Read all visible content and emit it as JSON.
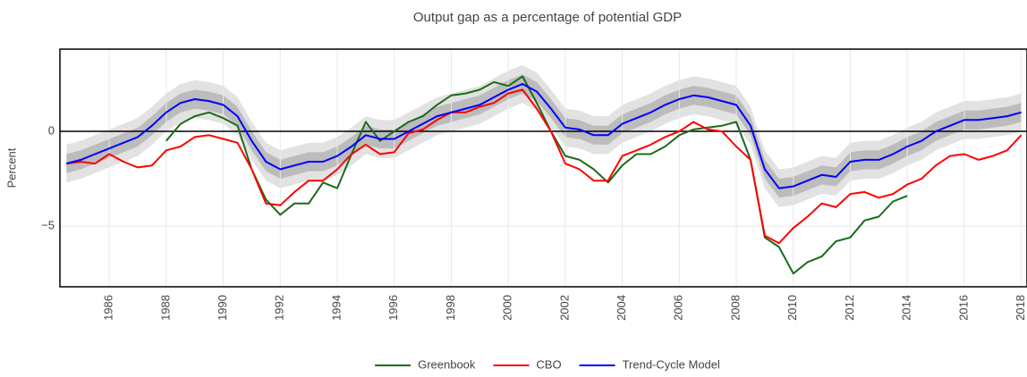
{
  "chart_data": {
    "type": "line",
    "title": "Output gap as a percentage of potential GDP",
    "ylabel": "Percent",
    "x": [
      1984.5,
      1985,
      1985.5,
      1986,
      1986.5,
      1987,
      1987.5,
      1988,
      1988.5,
      1989,
      1989.5,
      1990,
      1990.5,
      1991,
      1991.5,
      1992,
      1992.5,
      1993,
      1993.5,
      1994,
      1994.5,
      1995,
      1995.5,
      1996,
      1996.5,
      1997,
      1997.5,
      1998,
      1998.5,
      1999,
      1999.5,
      2000,
      2000.5,
      2001,
      2001.5,
      2002,
      2002.5,
      2003,
      2003.5,
      2004,
      2004.5,
      2005,
      2005.5,
      2006,
      2006.5,
      2007,
      2007.5,
      2008,
      2008.5,
      2009,
      2009.5,
      2010,
      2010.5,
      2011,
      2011.5,
      2012,
      2012.5,
      2013,
      2013.5,
      2014,
      2014.5,
      2015,
      2015.5,
      2016,
      2016.5,
      2017,
      2017.5,
      2018
    ],
    "series": [
      {
        "name": "Greenbook",
        "color": "#1a6b1a",
        "values": [
          null,
          null,
          null,
          null,
          null,
          null,
          null,
          -0.5,
          0.4,
          0.8,
          1.0,
          0.7,
          0.3,
          -2.0,
          -3.6,
          -4.4,
          -3.8,
          -3.8,
          -2.7,
          -3.0,
          -1.2,
          0.5,
          -0.5,
          0.0,
          0.5,
          0.8,
          1.4,
          1.9,
          2.0,
          2.2,
          2.6,
          2.4,
          2.9,
          1.5,
          0.0,
          -1.3,
          -1.5,
          -2.0,
          -2.7,
          -1.8,
          -1.2,
          -1.2,
          -0.8,
          -0.2,
          0.1,
          0.2,
          0.3,
          0.5,
          -1.5,
          -5.6,
          -6.1,
          -7.5,
          -6.9,
          -6.6,
          -5.8,
          -5.6,
          -4.7,
          -4.5,
          -3.7,
          -3.4,
          null,
          null,
          null,
          null,
          null,
          null,
          null,
          null
        ]
      },
      {
        "name": "CBO",
        "color": "#ff0000",
        "values": [
          -1.7,
          -1.6,
          -1.7,
          -1.2,
          -1.6,
          -1.9,
          -1.8,
          -1.0,
          -0.8,
          -0.3,
          -0.2,
          -0.4,
          -0.6,
          -2.0,
          -3.8,
          -3.9,
          -3.2,
          -2.6,
          -2.6,
          -2.0,
          -1.2,
          -0.7,
          -1.2,
          -1.1,
          -0.1,
          0.1,
          0.6,
          1.0,
          1.0,
          1.3,
          1.5,
          2.0,
          2.2,
          1.2,
          0.0,
          -1.7,
          -2.0,
          -2.6,
          -2.6,
          -1.3,
          -1.0,
          -0.7,
          -0.3,
          0.0,
          0.5,
          0.1,
          0.0,
          -0.8,
          -1.5,
          -5.5,
          -5.9,
          -5.1,
          -4.5,
          -3.8,
          -4.0,
          -3.3,
          -3.2,
          -3.5,
          -3.3,
          -2.8,
          -2.5,
          -1.8,
          -1.3,
          -1.2,
          -1.5,
          -1.3,
          -1.0,
          -0.2
        ]
      },
      {
        "name": "Trend-Cycle Model",
        "color": "#0000ff",
        "values": [
          -1.7,
          -1.5,
          -1.2,
          -0.9,
          -0.6,
          -0.3,
          0.3,
          1.0,
          1.5,
          1.7,
          1.6,
          1.4,
          0.8,
          -0.5,
          -1.6,
          -2.0,
          -1.8,
          -1.6,
          -1.6,
          -1.3,
          -0.8,
          -0.2,
          -0.4,
          -0.4,
          0.0,
          0.4,
          0.8,
          1.0,
          1.2,
          1.4,
          1.8,
          2.2,
          2.5,
          2.1,
          1.2,
          0.2,
          0.1,
          -0.2,
          -0.2,
          0.4,
          0.7,
          1.0,
          1.4,
          1.7,
          1.9,
          1.8,
          1.6,
          1.4,
          0.3,
          -2.0,
          -3.0,
          -2.9,
          -2.6,
          -2.3,
          -2.4,
          -1.6,
          -1.5,
          -1.5,
          -1.2,
          -0.8,
          -0.5,
          0.0,
          0.3,
          0.6,
          0.6,
          0.7,
          0.8,
          1.0
        ]
      }
    ],
    "bands": [
      {
        "color": "#e2e2e2",
        "half_width": 1.0
      },
      {
        "color": "#bcbcbc",
        "half_width": 0.5
      }
    ],
    "xlim": [
      1984.27,
      2018.2
    ],
    "xticks": [
      1986,
      1988,
      1990,
      1992,
      1994,
      1996,
      1998,
      2000,
      2002,
      2004,
      2006,
      2008,
      2010,
      2012,
      2014,
      2016,
      2018
    ],
    "ylim": [
      -8.2,
      4.34
    ],
    "yticks": [
      {
        "value": -5,
        "label": "−5"
      },
      0
    ],
    "grid": true,
    "legend": "bottom"
  }
}
